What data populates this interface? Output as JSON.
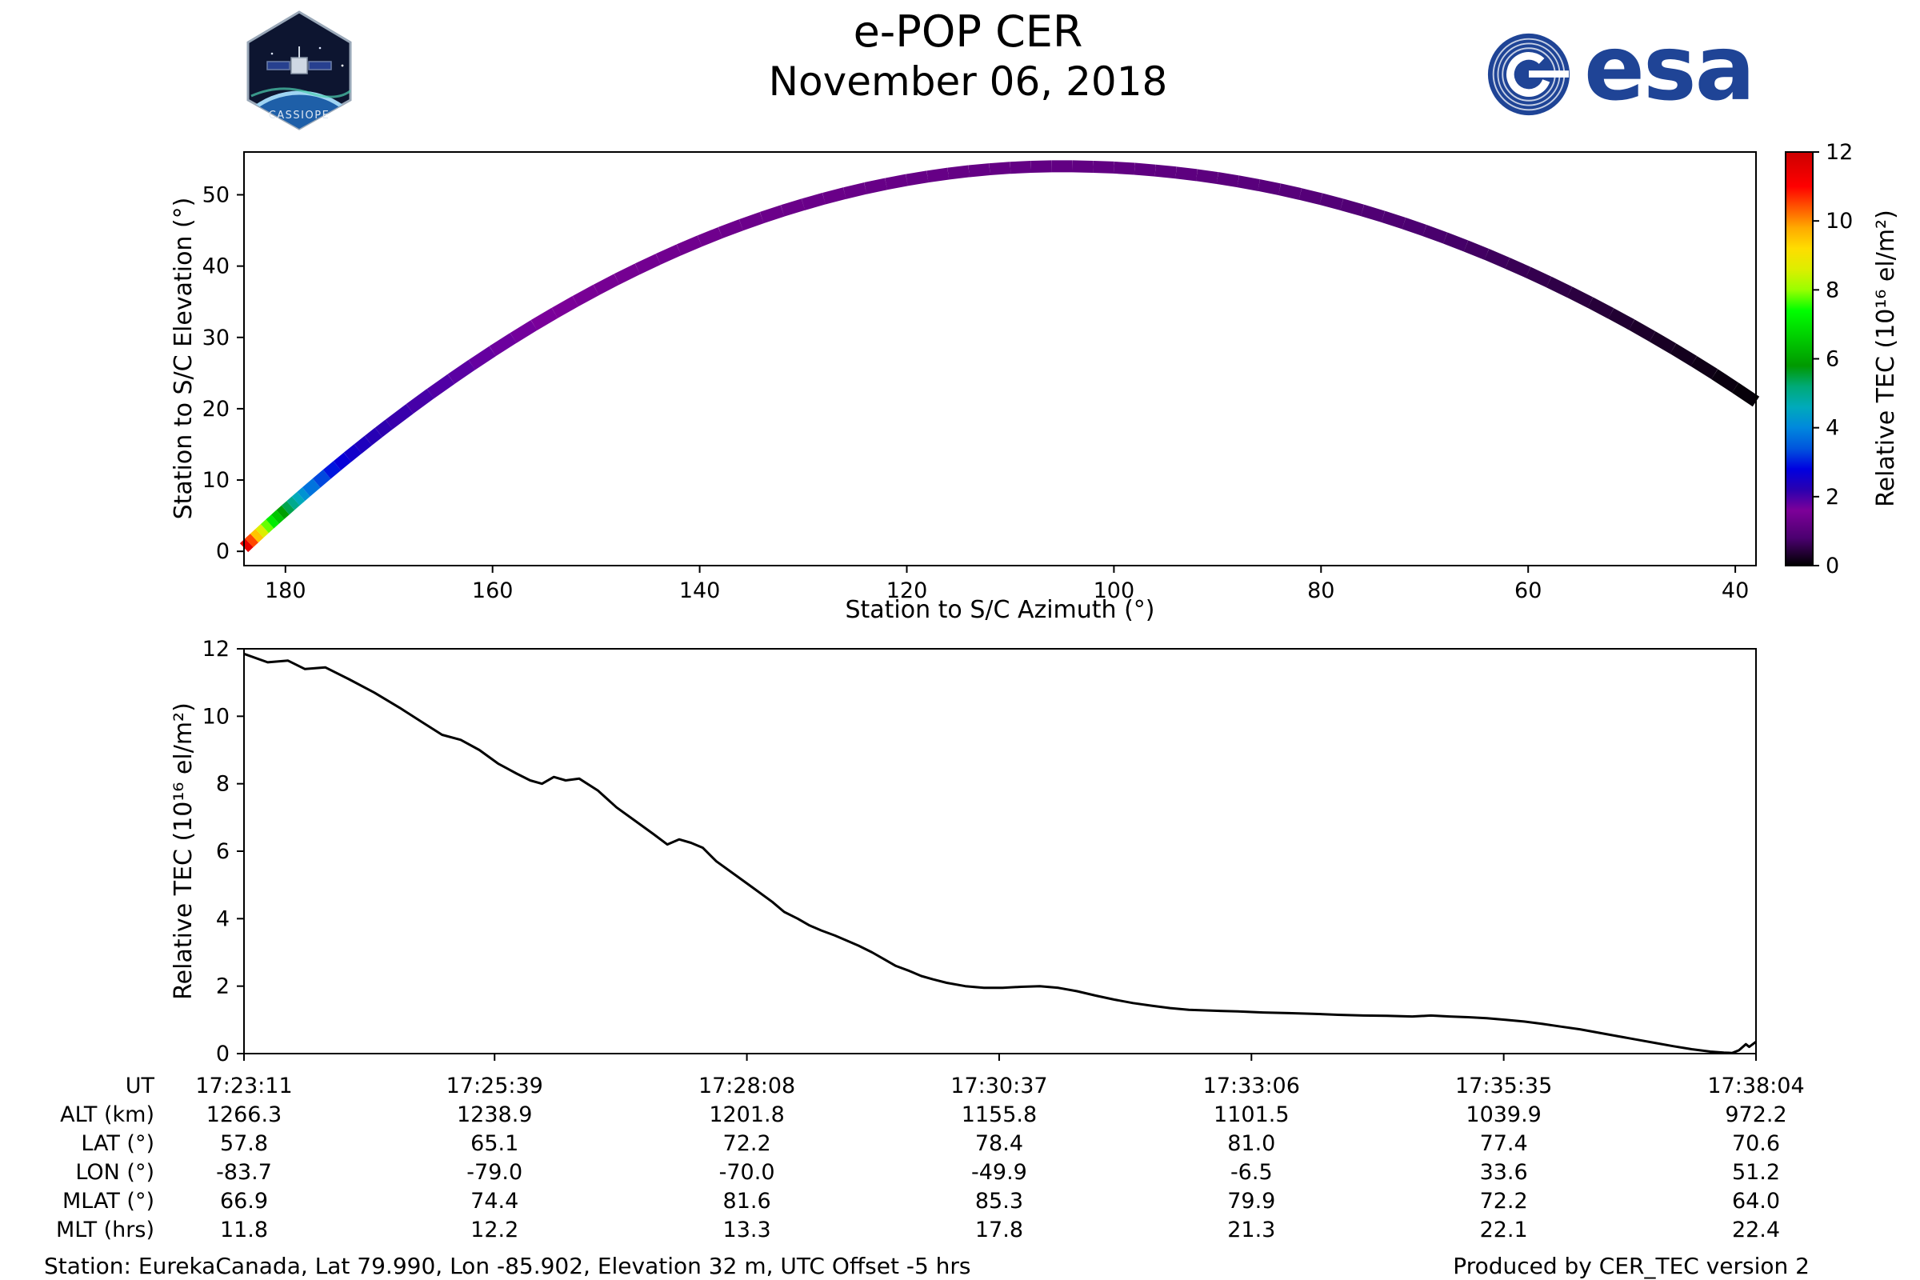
{
  "header": {
    "title": "e-POP CER",
    "date": "November 06, 2018",
    "cassiope_logo_text": "CASSIOPE",
    "esa_wordmark": "esa"
  },
  "colors": {
    "esa_blue": "#1f4496",
    "line": "#000000",
    "axis": "#000000"
  },
  "colormap": [
    [
      0.0,
      "#000000"
    ],
    [
      0.8,
      "#4b0070"
    ],
    [
      1.6,
      "#7d0099"
    ],
    [
      2.2,
      "#2a00b0"
    ],
    [
      2.8,
      "#0000e0"
    ],
    [
      3.4,
      "#0055dd"
    ],
    [
      4.0,
      "#0088dd"
    ],
    [
      4.6,
      "#00aabb"
    ],
    [
      5.2,
      "#00aa77"
    ],
    [
      5.8,
      "#009900"
    ],
    [
      6.6,
      "#00cc00"
    ],
    [
      7.4,
      "#00ff00"
    ],
    [
      8.0,
      "#99ff00"
    ],
    [
      8.6,
      "#ddee00"
    ],
    [
      9.2,
      "#ffdd00"
    ],
    [
      9.8,
      "#ffaa00"
    ],
    [
      10.4,
      "#ff5500"
    ],
    [
      11.0,
      "#ff0000"
    ],
    [
      12.0,
      "#cc0000"
    ]
  ],
  "chart_data": [
    {
      "type": "scatter",
      "xlabel": "Station to S/C Azimuth (°)",
      "ylabel": "Station to S/C Elevation (°)",
      "xlim": [
        184,
        38
      ],
      "x_reversed": true,
      "ylim": [
        -2,
        56
      ],
      "xticks": [
        180,
        160,
        140,
        120,
        100,
        80,
        60,
        40
      ],
      "yticks": [
        0,
        10,
        20,
        30,
        40,
        50
      ],
      "x": [
        184,
        183.5,
        183,
        182.5,
        182,
        181.5,
        181,
        180.5,
        180,
        179.5,
        179,
        178.5,
        178,
        177,
        176,
        175,
        174,
        173,
        172,
        171,
        170,
        168,
        166,
        164,
        162,
        160,
        158,
        156,
        154,
        152,
        150,
        148,
        146,
        144,
        142,
        140,
        138,
        136,
        134,
        132,
        130,
        128,
        126,
        124,
        122,
        120,
        118,
        116,
        114,
        112,
        110,
        108,
        106,
        104,
        102,
        100,
        98,
        96,
        94,
        92,
        90,
        88,
        86,
        84,
        82,
        80,
        78,
        76,
        74,
        72,
        70,
        68,
        66,
        64,
        62,
        60,
        58,
        56,
        54,
        52,
        50,
        48,
        46,
        44,
        42,
        40,
        38
      ],
      "y": [
        0.51,
        1.19,
        1.86,
        2.53,
        3.19,
        3.85,
        4.5,
        5.15,
        5.79,
        6.43,
        7.07,
        7.7,
        8.33,
        9.57,
        10.8,
        12.01,
        13.2,
        14.37,
        15.53,
        16.67,
        17.79,
        19.98,
        22.11,
        24.16,
        26.15,
        28.07,
        29.92,
        31.71,
        33.42,
        35.07,
        36.65,
        38.16,
        39.6,
        40.97,
        42.28,
        43.51,
        44.68,
        45.77,
        46.8,
        47.76,
        48.64,
        49.47,
        50.22,
        50.91,
        51.52,
        52.07,
        52.55,
        52.96,
        53.31,
        53.58,
        53.79,
        53.92,
        53.99,
        53.99,
        53.93,
        53.82,
        53.64,
        53.4,
        53.11,
        52.76,
        52.35,
        51.88,
        51.35,
        50.76,
        50.11,
        49.41,
        48.64,
        47.82,
        46.94,
        46.0,
        45.0,
        43.94,
        42.82,
        41.65,
        40.41,
        39.12,
        37.77,
        36.36,
        34.89,
        33.36,
        31.78,
        30.13,
        28.43,
        26.67,
        24.85,
        22.95,
        21.0
      ],
      "c": [
        12.0,
        11.0,
        10.0,
        9.0,
        8.2,
        7.4,
        6.8,
        6.2,
        5.6,
        5.2,
        4.8,
        4.4,
        4.0,
        3.5,
        3.1,
        2.8,
        2.6,
        2.45,
        2.3,
        2.2,
        2.15,
        2.05,
        1.95,
        1.9,
        1.8,
        1.75,
        1.7,
        1.65,
        1.6,
        1.55,
        1.5,
        1.48,
        1.45,
        1.43,
        1.4,
        1.38,
        1.36,
        1.34,
        1.32,
        1.3,
        1.29,
        1.28,
        1.27,
        1.26,
        1.25,
        1.24,
        1.23,
        1.22,
        1.21,
        1.2,
        1.19,
        1.18,
        1.17,
        1.16,
        1.15,
        1.14,
        1.13,
        1.12,
        1.1,
        1.08,
        1.06,
        1.04,
        1.02,
        1.0,
        0.98,
        0.95,
        0.92,
        0.89,
        0.86,
        0.83,
        0.8,
        0.76,
        0.72,
        0.68,
        0.63,
        0.58,
        0.53,
        0.48,
        0.43,
        0.38,
        0.33,
        0.28,
        0.23,
        0.18,
        0.13,
        0.08,
        0.05
      ],
      "colorbar": {
        "label": "Relative TEC (10¹⁶ el/m²)",
        "ticks": [
          0,
          2,
          4,
          6,
          8,
          10,
          12
        ],
        "range": [
          0,
          12
        ]
      }
    },
    {
      "type": "line",
      "ylabel": "Relative TEC (10¹⁶ el/m²)",
      "ylim": [
        0,
        12
      ],
      "yticks": [
        0,
        2,
        4,
        6,
        8,
        10,
        12
      ],
      "x_range_seconds": [
        0,
        893
      ],
      "xtick_seconds": [
        0,
        148,
        297,
        446,
        595,
        744,
        893
      ],
      "x_seconds": [
        0,
        14,
        26,
        36,
        48,
        62,
        77,
        92,
        106,
        117,
        128,
        139,
        150,
        161,
        169,
        176,
        183,
        190,
        198,
        209,
        220,
        231,
        242,
        250,
        257,
        264,
        271,
        279,
        290,
        301,
        312,
        319,
        327,
        334,
        341,
        349,
        356,
        363,
        371,
        378,
        385,
        393,
        400,
        407,
        415,
        426,
        437,
        448,
        459,
        470,
        481,
        492,
        503,
        514,
        525,
        536,
        547,
        558,
        573,
        587,
        602,
        617,
        631,
        646,
        661,
        675,
        690,
        701,
        712,
        723,
        734,
        745,
        756,
        767,
        778,
        789,
        800,
        811,
        822,
        833,
        844,
        855,
        866,
        874,
        879,
        883,
        887,
        889,
        893
      ],
      "y": [
        11.85,
        11.6,
        11.65,
        11.4,
        11.45,
        11.1,
        10.7,
        10.25,
        9.8,
        9.45,
        9.3,
        9.0,
        8.6,
        8.3,
        8.1,
        8.0,
        8.2,
        8.1,
        8.15,
        7.8,
        7.3,
        6.9,
        6.5,
        6.2,
        6.35,
        6.25,
        6.1,
        5.7,
        5.3,
        4.9,
        4.5,
        4.2,
        4.0,
        3.8,
        3.65,
        3.5,
        3.35,
        3.2,
        3.0,
        2.8,
        2.6,
        2.45,
        2.3,
        2.2,
        2.1,
        2.0,
        1.95,
        1.95,
        1.98,
        2.0,
        1.95,
        1.85,
        1.72,
        1.6,
        1.5,
        1.42,
        1.35,
        1.3,
        1.27,
        1.25,
        1.22,
        1.2,
        1.18,
        1.15,
        1.13,
        1.12,
        1.1,
        1.13,
        1.1,
        1.08,
        1.05,
        1.0,
        0.95,
        0.88,
        0.8,
        0.72,
        0.62,
        0.52,
        0.42,
        0.32,
        0.22,
        0.13,
        0.06,
        0.03,
        0.02,
        0.1,
        0.28,
        0.2,
        0.35
      ],
      "xtick_table": {
        "row_headers": [
          "UT",
          "ALT (km)",
          "LAT (°)",
          "LON (°)",
          "MLAT (°)",
          "MLT (hrs)"
        ],
        "columns": [
          [
            "17:23:11",
            "1266.3",
            "57.8",
            "-83.7",
            "66.9",
            "11.8"
          ],
          [
            "17:25:39",
            "1238.9",
            "65.1",
            "-79.0",
            "74.4",
            "12.2"
          ],
          [
            "17:28:08",
            "1201.8",
            "72.2",
            "-70.0",
            "81.6",
            "13.3"
          ],
          [
            "17:30:37",
            "1155.8",
            "78.4",
            "-49.9",
            "85.3",
            "17.8"
          ],
          [
            "17:33:06",
            "1101.5",
            "81.0",
            "-6.5",
            "79.9",
            "21.3"
          ],
          [
            "17:35:35",
            "1039.9",
            "77.4",
            "33.6",
            "72.2",
            "22.1"
          ],
          [
            "17:38:04",
            "972.2",
            "70.6",
            "51.2",
            "64.0",
            "22.4"
          ]
        ]
      }
    }
  ],
  "footer": {
    "station": "Station: EurekaCanada, Lat 79.990, Lon -85.902, Elevation 32 m, UTC Offset -5 hrs",
    "produced": "Produced by CER_TEC version 2"
  }
}
